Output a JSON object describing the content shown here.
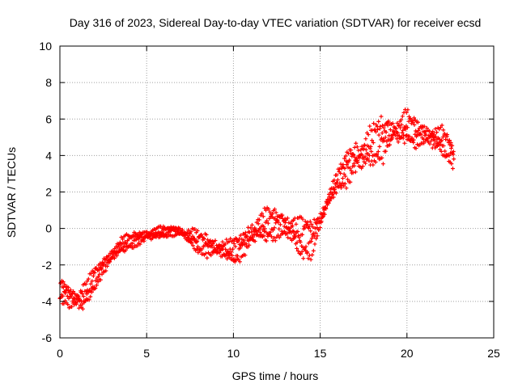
{
  "chart_data": {
    "type": "scatter",
    "title": "Day 316 of 2023, Sidereal Day-to-day VTEC variation (SDTVAR) for receiver ecsd",
    "xlabel": "GPS time / hours",
    "ylabel": "SDTVAR / TECUs",
    "xlim": [
      0,
      25
    ],
    "ylim": [
      -6,
      10
    ],
    "xticks": [
      0,
      5,
      10,
      15,
      20,
      25
    ],
    "yticks": [
      -6,
      -4,
      -2,
      0,
      2,
      4,
      6,
      8,
      10
    ],
    "xtick_labels": [
      "0",
      "5",
      "10",
      "15",
      "20",
      "25"
    ],
    "ytick_labels": [
      "-6",
      "-4",
      "-2",
      "0",
      "2",
      "4",
      "6",
      "8",
      "10"
    ],
    "grid": true,
    "marker": "+",
    "color": "#ff0000",
    "series": [
      {
        "name": "SDTVAR",
        "envelope": {
          "x": [
            0.0,
            0.3,
            0.6,
            0.9,
            1.2,
            1.5,
            1.8,
            2.1,
            2.5,
            3.0,
            3.5,
            4.0,
            4.5,
            5.0,
            5.5,
            6.0,
            6.5,
            7.0,
            7.5,
            8.0,
            8.5,
            9.0,
            9.5,
            10.0,
            10.5,
            11.0,
            11.5,
            12.0,
            12.5,
            13.0,
            13.5,
            14.0,
            14.5,
            15.0,
            15.5,
            16.0,
            16.5,
            17.0,
            17.5,
            18.0,
            18.5,
            19.0,
            19.5,
            20.0,
            20.5,
            21.0,
            21.5,
            22.0,
            22.5,
            22.7
          ],
          "center": [
            -3.3,
            -3.5,
            -3.7,
            -3.8,
            -3.9,
            -3.7,
            -3.1,
            -2.6,
            -2.0,
            -1.5,
            -1.0,
            -0.7,
            -0.5,
            -0.4,
            -0.3,
            -0.2,
            -0.1,
            -0.2,
            -0.5,
            -0.8,
            -0.9,
            -1.1,
            -1.2,
            -1.3,
            -0.9,
            -0.3,
            -0.1,
            0.2,
            0.3,
            0.1,
            -0.3,
            -0.6,
            -0.5,
            0.4,
            1.6,
            2.6,
            3.3,
            3.8,
            4.1,
            4.5,
            4.9,
            5.2,
            5.3,
            5.5,
            5.3,
            5.1,
            4.9,
            4.8,
            4.3,
            3.9
          ],
          "spread": [
            0.7,
            0.6,
            0.7,
            0.8,
            0.9,
            0.8,
            0.7,
            0.6,
            0.5,
            0.5,
            0.5,
            0.4,
            0.4,
            0.4,
            0.3,
            0.3,
            0.3,
            0.3,
            0.5,
            0.6,
            0.6,
            0.6,
            0.6,
            0.7,
            0.7,
            0.8,
            0.9,
            0.9,
            0.8,
            1.0,
            1.0,
            1.1,
            1.0,
            0.6,
            0.4,
            0.6,
            0.9,
            1.2,
            1.0,
            1.1,
            1.3,
            1.0,
            0.8,
            0.9,
            0.8,
            0.7,
            0.7,
            0.8,
            0.8,
            0.6
          ]
        },
        "point_count": 1200,
        "seed": 316
      }
    ]
  }
}
